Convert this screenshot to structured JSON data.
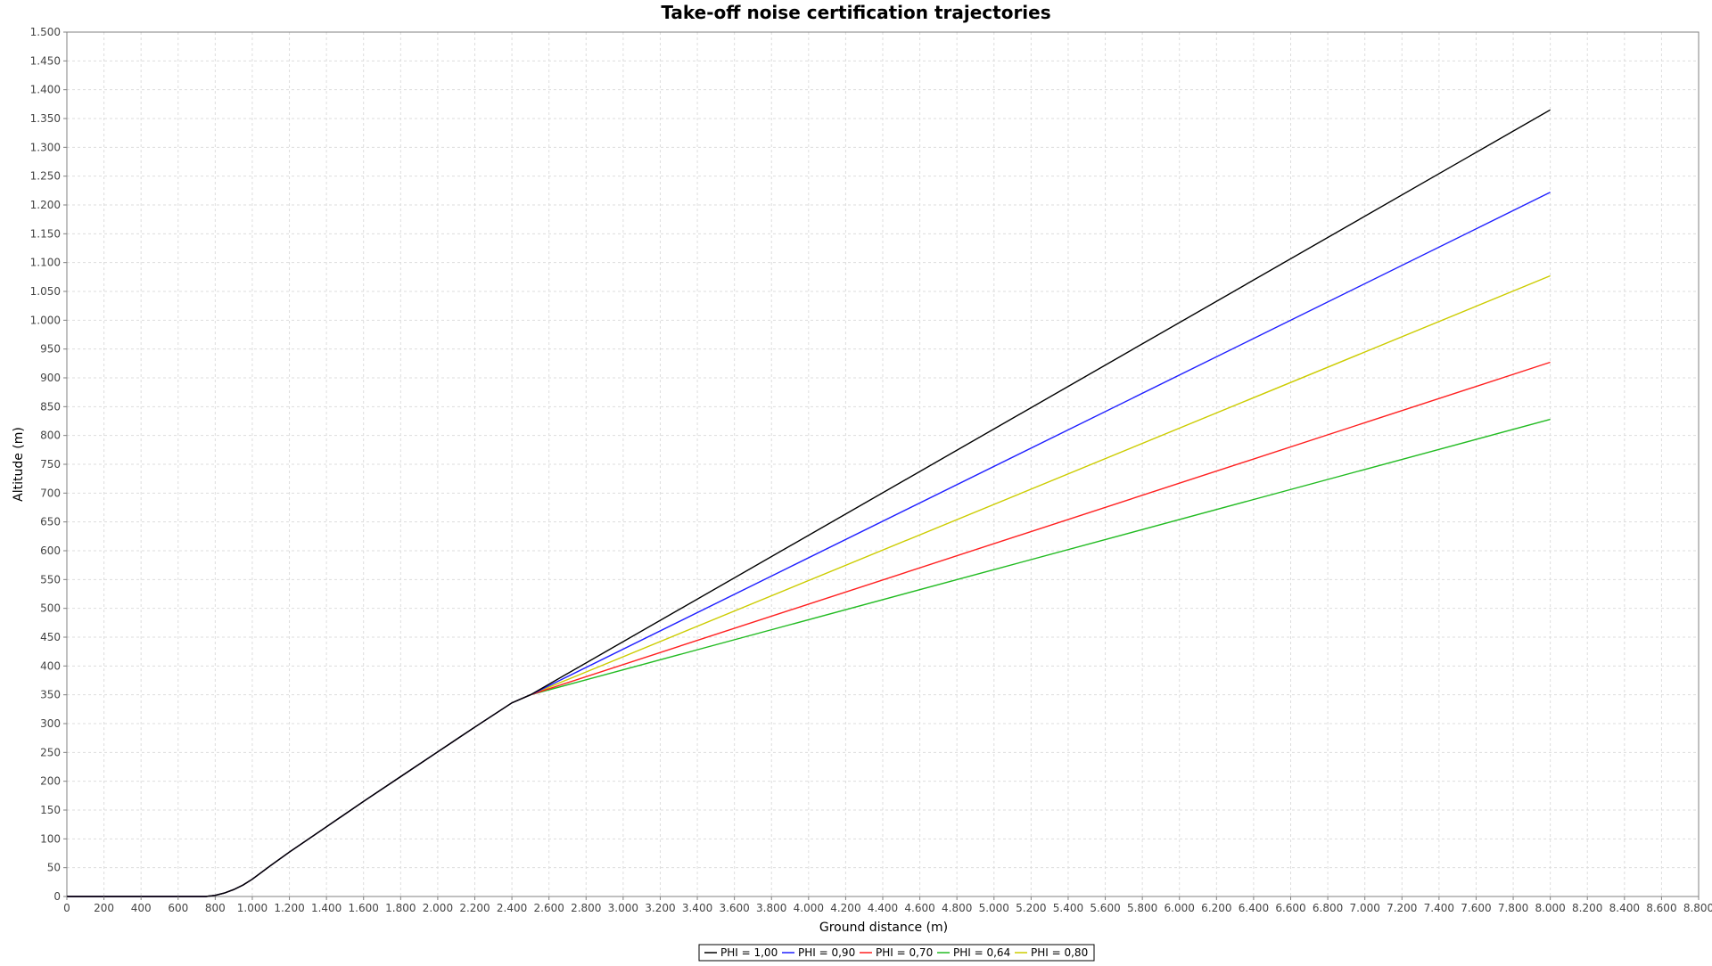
{
  "chart_data": {
    "type": "line",
    "title": "Take-off noise certification trajectories",
    "xlabel": "Ground distance (m)",
    "ylabel": "Altitude (m)",
    "xlim": [
      0,
      8800
    ],
    "ylim": [
      0,
      1500
    ],
    "x_tick_step": 200,
    "y_tick_step": 50,
    "thousands_separator": ".",
    "grid": true,
    "legend_position": "bottom-center",
    "common_path": {
      "x": [
        0,
        750,
        800,
        850,
        900,
        950,
        1000,
        1050,
        1100,
        1200,
        1400,
        1600,
        1800,
        2000,
        2200,
        2400,
        2500
      ],
      "y": [
        0,
        0,
        2,
        6,
        12,
        20,
        30,
        42,
        54,
        77,
        121,
        165,
        208,
        251,
        294,
        336,
        350
      ]
    },
    "series": [
      {
        "name": "PHI = 1,00",
        "color": "#000000",
        "x": [
          2500,
          8000
        ],
        "y": [
          350,
          1365
        ]
      },
      {
        "name": "PHI = 0,90",
        "color": "#2020ff",
        "x": [
          2500,
          8000
        ],
        "y": [
          350,
          1222
        ]
      },
      {
        "name": "PHI = 0,70",
        "color": "#ff2020",
        "x": [
          2500,
          8000
        ],
        "y": [
          350,
          927
        ]
      },
      {
        "name": "PHI = 0,64",
        "color": "#22bb22",
        "x": [
          2500,
          8000
        ],
        "y": [
          350,
          828
        ]
      },
      {
        "name": "PHI = 0,80",
        "color": "#cccc00",
        "x": [
          2500,
          8000
        ],
        "y": [
          350,
          1077
        ]
      }
    ]
  }
}
